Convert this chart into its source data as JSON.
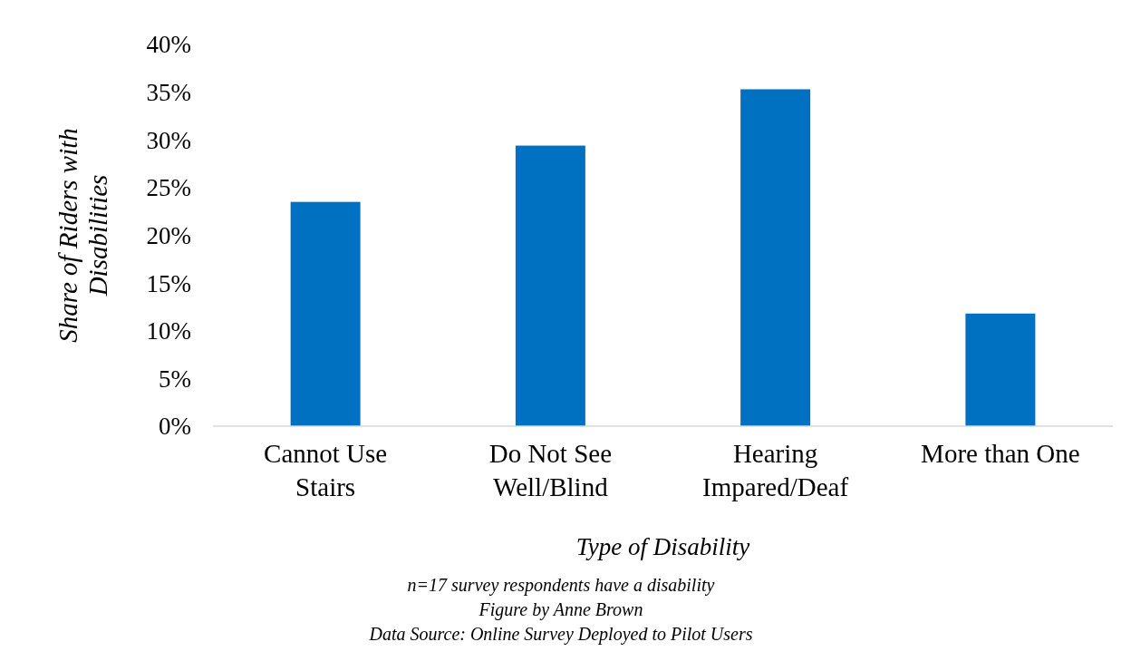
{
  "chart_data": {
    "type": "bar",
    "xlabel": "Type of Disability",
    "ylabel": "Share of Riders with Disabilities",
    "categories": [
      "Cannot Use Stairs",
      "Do Not See Well/Blind",
      "Hearing Impared/Deaf",
      "More than One"
    ],
    "values": [
      23.5,
      29.4,
      35.3,
      11.8
    ],
    "color": "#0070c0",
    "ylim": [
      0,
      40
    ],
    "yticks": [
      {
        "value": 0,
        "label": "0%"
      },
      {
        "value": 5,
        "label": "5%"
      },
      {
        "value": 10,
        "label": "10%"
      },
      {
        "value": 15,
        "label": "15%"
      },
      {
        "value": 20,
        "label": "20%"
      },
      {
        "value": 25,
        "label": "25%"
      },
      {
        "value": 30,
        "label": "30%"
      },
      {
        "value": 35,
        "label": "35%"
      },
      {
        "value": 40,
        "label": "40%"
      }
    ],
    "grid": false,
    "annotations": [
      "n=17 survey respondents have a disability",
      "Figure by Anne Brown",
      "Data Source: Online Survey Deployed to Pilot Users"
    ]
  }
}
